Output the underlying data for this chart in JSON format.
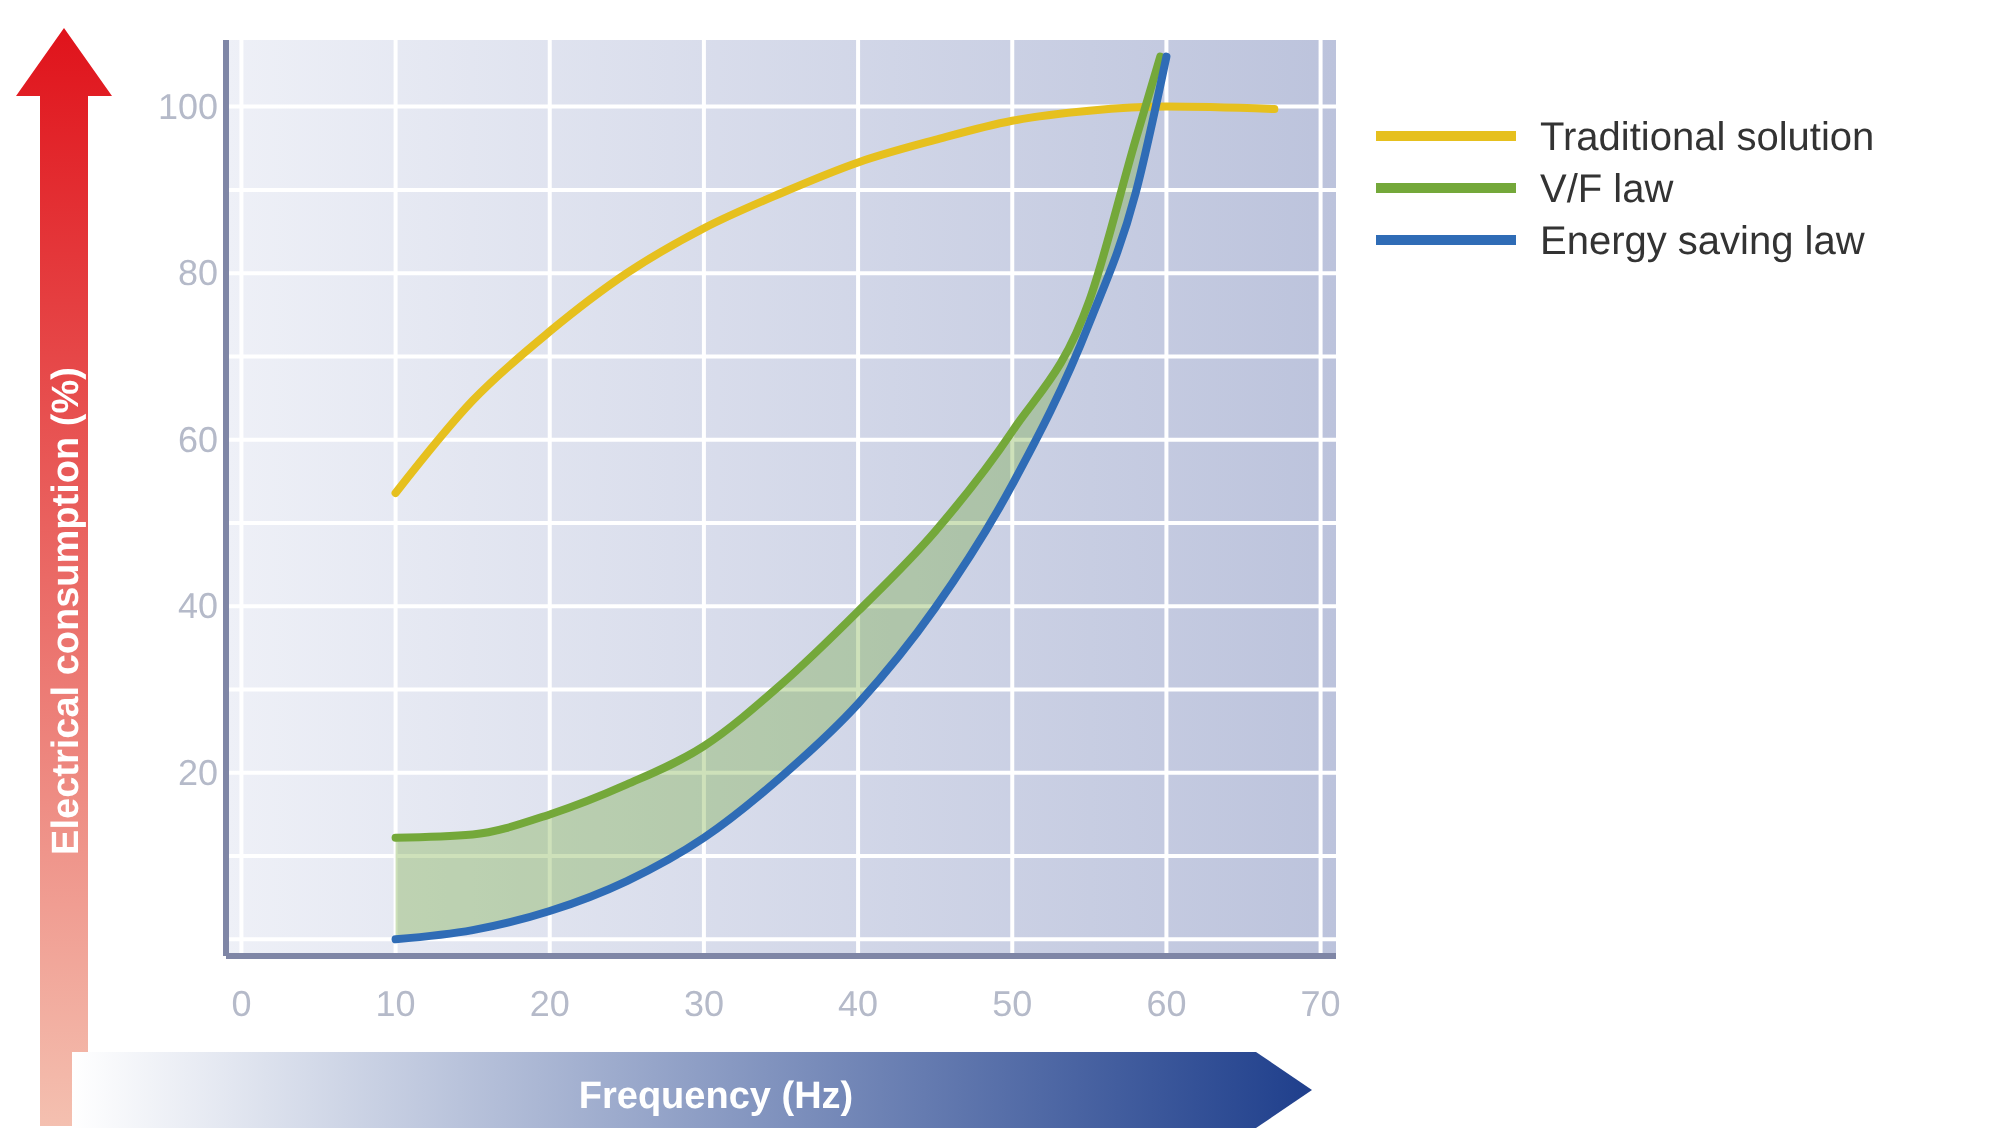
{
  "chart_data": {
    "type": "line",
    "xlabel": "Frequency (Hz)",
    "ylabel": "Electrical consumption (%)",
    "xlim": [
      -1,
      71
    ],
    "xticks": [
      0,
      10,
      20,
      30,
      40,
      50,
      60,
      70
    ],
    "ylim": [
      -2,
      108
    ],
    "yticks": [
      {
        "value": 0,
        "label": null
      },
      {
        "value": 10,
        "label": null
      },
      20,
      {
        "value": 30,
        "label": null
      },
      40,
      {
        "value": 50,
        "label": null
      },
      60,
      {
        "value": 70,
        "label": null
      },
      80,
      {
        "value": 90,
        "label": null
      },
      100
    ],
    "grid": true,
    "legend": "top right",
    "marker": "none",
    "line_style": "solid",
    "series": [
      {
        "name": "Traditional solution",
        "color": "#e6c01e",
        "x": [
          10,
          15,
          20,
          25,
          30,
          35,
          40,
          45,
          50,
          55,
          60,
          67
        ],
        "values": [
          53.6,
          64.7,
          73,
          80,
          85.4,
          89.6,
          93.3,
          96,
          98.3,
          99.5,
          100,
          99.7
        ]
      },
      {
        "name": "V/F law",
        "color": "#74a83a",
        "x": [
          10,
          15,
          20,
          25,
          30,
          35,
          40,
          45,
          50,
          55,
          58,
          59.6
        ],
        "values": [
          12.2,
          12.6,
          15,
          18.6,
          23.2,
          30.6,
          39.4,
          49,
          61,
          76.7,
          96,
          106
        ],
        "lower": [
          0,
          1.1,
          3.4,
          7,
          12.2,
          19.5,
          28.3,
          39.8,
          54.6,
          74,
          89.6,
          101
        ],
        "upper": [
          12.2,
          12.6,
          15,
          18.6,
          23.2,
          30.6,
          39.4,
          49,
          61,
          76.7,
          96,
          106
        ]
      },
      {
        "name": "Energy saving law",
        "color": "#2f6cb6",
        "x": [
          10,
          15,
          20,
          25,
          30,
          35,
          40,
          45,
          50,
          55,
          58,
          60
        ],
        "values": [
          0,
          1.1,
          3.4,
          7,
          12.2,
          19.5,
          28.3,
          39.8,
          54.6,
          74,
          89.6,
          106
        ]
      }
    ]
  }
}
